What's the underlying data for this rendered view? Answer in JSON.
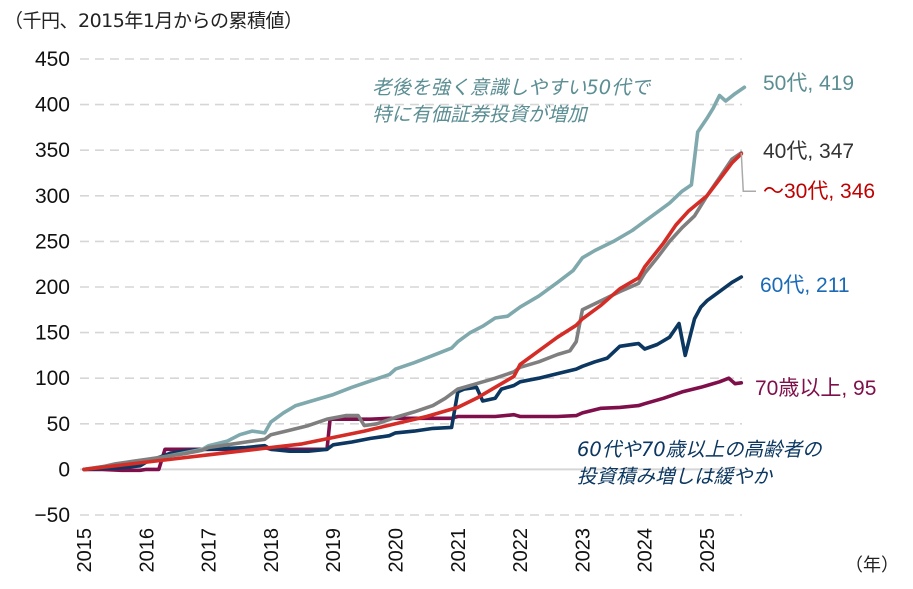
{
  "chart_data": {
    "type": "line",
    "title": "",
    "ylabel": "（千円、2015年1月からの累積値）",
    "xlabel": "（年）",
    "ylim": [
      -50,
      450
    ],
    "yticks": [
      450,
      400,
      350,
      300,
      250,
      200,
      150,
      100,
      50,
      0,
      -50
    ],
    "ytick_labels": [
      "450",
      "400",
      "350",
      "300",
      "250",
      "200",
      "150",
      "100",
      "50",
      "0",
      "−50"
    ],
    "xlim": [
      2015,
      2025.6
    ],
    "xticks": [
      2015,
      2016,
      2017,
      2018,
      2019,
      2020,
      2021,
      2022,
      2023,
      2024,
      2025
    ],
    "xtick_labels": [
      "2015",
      "2016",
      "2017",
      "2018",
      "2019",
      "2020",
      "2021",
      "2022",
      "2023",
      "2024",
      "2025"
    ],
    "grid": true,
    "series": [
      {
        "name": "50代",
        "end_label": "50代, 419",
        "final_value": 419,
        "color": "#7fa9ad",
        "label_color": "#5b8e93",
        "x": [
          2015,
          2015.3,
          2015.5,
          2015.8,
          2016,
          2016.3,
          2016.6,
          2016.9,
          2017,
          2017.3,
          2017.5,
          2017.7,
          2017.9,
          2018,
          2018.2,
          2018.4,
          2018.7,
          2019,
          2019.3,
          2019.6,
          2019.9,
          2020,
          2020.3,
          2020.6,
          2020.9,
          2021,
          2021.2,
          2021.4,
          2021.6,
          2021.8,
          2022,
          2022.3,
          2022.6,
          2022.85,
          2023,
          2023.2,
          2023.5,
          2023.8,
          2024,
          2024.2,
          2024.4,
          2024.6,
          2024.75,
          2024.85,
          2025,
          2025.1,
          2025.2,
          2025.3,
          2025.45,
          2025.6
        ],
        "y": [
          0,
          3,
          5,
          8,
          10,
          14,
          18,
          22,
          26,
          31,
          38,
          42,
          40,
          52,
          62,
          70,
          76,
          82,
          90,
          97,
          104,
          110,
          117,
          125,
          133,
          140,
          150,
          157,
          166,
          168,
          178,
          190,
          205,
          218,
          232,
          240,
          250,
          262,
          272,
          282,
          292,
          305,
          312,
          370,
          385,
          396,
          410,
          404,
          412,
          419
        ]
      },
      {
        "name": "40代",
        "end_label": "40代, 347",
        "final_value": 347,
        "color": "#7f7f7f",
        "label_color": "#333333",
        "x": [
          2015,
          2015.3,
          2015.5,
          2015.8,
          2016,
          2016.3,
          2016.6,
          2016.9,
          2017,
          2017.3,
          2017.6,
          2017.9,
          2018,
          2018.3,
          2018.6,
          2018.9,
          2019.2,
          2019.4,
          2019.5,
          2019.7,
          2020,
          2020.3,
          2020.6,
          2020.8,
          2021,
          2021.3,
          2021.6,
          2021.9,
          2022,
          2022.3,
          2022.6,
          2022.8,
          2022.9,
          2023,
          2023.3,
          2023.6,
          2023.9,
          2024,
          2024.2,
          2024.4,
          2024.6,
          2024.8,
          2025,
          2025.2,
          2025.4,
          2025.55
        ],
        "y": [
          0,
          3,
          6,
          9,
          11,
          14,
          17,
          21,
          24,
          27,
          30,
          33,
          38,
          43,
          48,
          55,
          59,
          59,
          48,
          50,
          57,
          63,
          70,
          78,
          88,
          94,
          100,
          107,
          112,
          118,
          126,
          130,
          140,
          175,
          185,
          195,
          204,
          215,
          232,
          250,
          265,
          278,
          300,
          320,
          340,
          347
        ]
      },
      {
        "name": "〜30代",
        "end_label": "〜30代, 346",
        "final_value": 346,
        "color": "#d42c26",
        "label_color": "#c00000",
        "x": [
          2015,
          2015.5,
          2016,
          2016.5,
          2017,
          2017.5,
          2018,
          2018.5,
          2019,
          2019.5,
          2020,
          2020.5,
          2021,
          2021.3,
          2021.6,
          2021.9,
          2022,
          2022.3,
          2022.6,
          2022.9,
          2023,
          2023.3,
          2023.6,
          2023.9,
          2024,
          2024.3,
          2024.5,
          2024.7,
          2025,
          2025.2,
          2025.4,
          2025.55
        ],
        "y": [
          0,
          4,
          8,
          12,
          16,
          20,
          24,
          28,
          35,
          42,
          50,
          58,
          68,
          78,
          90,
          102,
          115,
          130,
          145,
          158,
          165,
          180,
          198,
          210,
          222,
          248,
          268,
          283,
          300,
          318,
          336,
          346
        ]
      },
      {
        "name": "60代",
        "end_label": "60代, 211",
        "final_value": 211,
        "color": "#0b3760",
        "label_color": "#1a6ab8",
        "x": [
          2015,
          2015.3,
          2015.6,
          2015.9,
          2016,
          2016.2,
          2016.4,
          2016.6,
          2016.9,
          2017,
          2017.3,
          2017.6,
          2017.9,
          2018,
          2018.3,
          2018.6,
          2018.9,
          2019,
          2019.3,
          2019.6,
          2019.9,
          2020,
          2020.3,
          2020.6,
          2020.9,
          2021,
          2021.1,
          2021.3,
          2021.4,
          2021.6,
          2021.7,
          2021.9,
          2022,
          2022.3,
          2022.6,
          2022.9,
          2023,
          2023.2,
          2023.4,
          2023.6,
          2023.9,
          2024,
          2024.2,
          2024.4,
          2024.55,
          2024.65,
          2024.8,
          2024.9,
          2025,
          2025.2,
          2025.4,
          2025.55
        ],
        "y": [
          0,
          1,
          2,
          4,
          8,
          13,
          18,
          20,
          22,
          22,
          23,
          24,
          26,
          22,
          20,
          20,
          22,
          27,
          30,
          34,
          37,
          40,
          42,
          45,
          46,
          85,
          88,
          90,
          75,
          78,
          88,
          92,
          96,
          100,
          105,
          110,
          113,
          118,
          122,
          135,
          138,
          132,
          137,
          145,
          160,
          125,
          165,
          178,
          185,
          195,
          205,
          211
        ]
      },
      {
        "name": "70歳以上",
        "end_label": "70歳以上, 95",
        "final_value": 95,
        "color": "#7f0f4a",
        "label_color": "#7f0f4a",
        "x": [
          2015,
          2015.3,
          2015.6,
          2015.9,
          2016,
          2016.2,
          2016.3,
          2016.6,
          2016.9,
          2017,
          2017.3,
          2017.6,
          2017.9,
          2018,
          2018.3,
          2018.6,
          2018.9,
          2018.95,
          2019,
          2019.3,
          2019.6,
          2019.9,
          2020,
          2020.3,
          2020.6,
          2020.9,
          2021,
          2021.3,
          2021.6,
          2021.9,
          2022,
          2022.3,
          2022.6,
          2022.9,
          2023,
          2023.3,
          2023.6,
          2023.9,
          2024,
          2024.3,
          2024.6,
          2024.9,
          2025,
          2025.2,
          2025.35,
          2025.45,
          2025.55
        ],
        "y": [
          0,
          0,
          -1,
          -1,
          0,
          0,
          22,
          22,
          22,
          22,
          22,
          23,
          24,
          22,
          22,
          22,
          22,
          55,
          55,
          55,
          55,
          56,
          56,
          56,
          56,
          56,
          58,
          58,
          58,
          60,
          58,
          58,
          58,
          59,
          62,
          67,
          68,
          70,
          72,
          78,
          85,
          90,
          92,
          96,
          100,
          94,
          95
        ]
      }
    ],
    "annotations": [
      {
        "text_line1": "老後を強く意識しやすい50代で",
        "text_line2": "特に有価証券投資が増加",
        "color": "#5b8e93"
      },
      {
        "text_line1": "60代や70歳以上の高齢者の",
        "text_line2": "投資積み増しは緩やか",
        "color": "#0b3760"
      }
    ]
  }
}
